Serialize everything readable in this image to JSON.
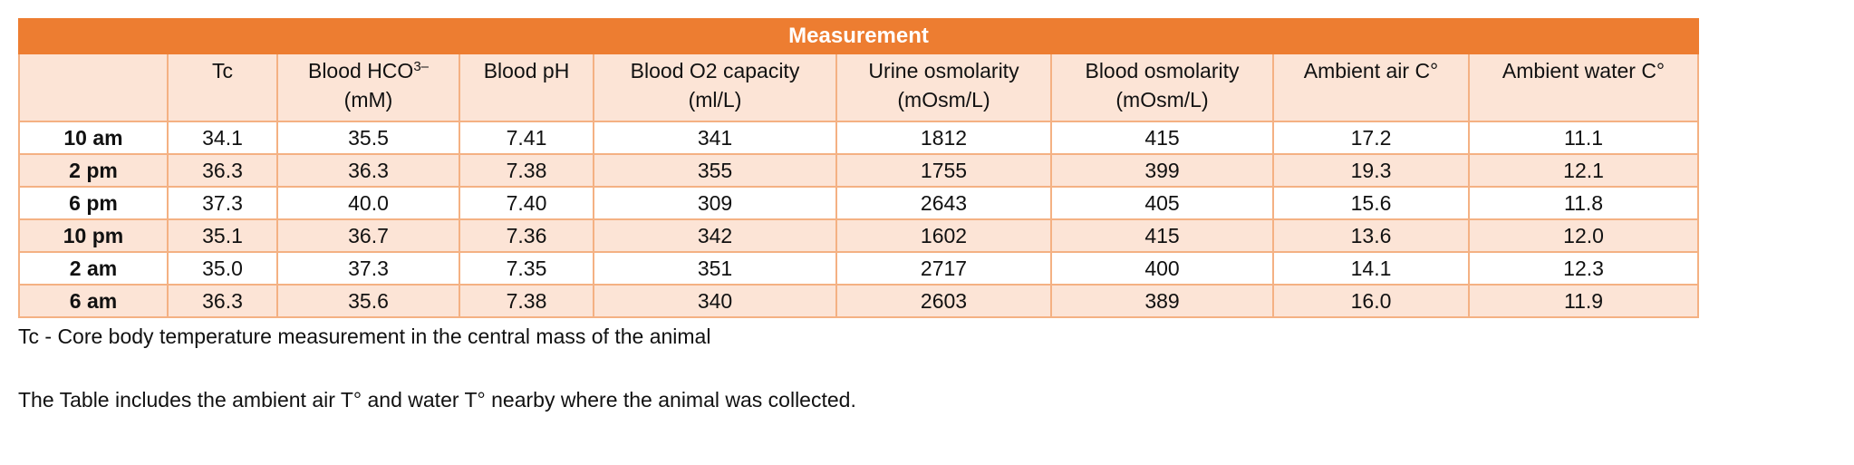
{
  "table": {
    "title": "Measurement",
    "headers": [
      {
        "line1": ""
      },
      {
        "line1": "Tc"
      },
      {
        "line1": "Blood HCO",
        "sup": "3–",
        "line2": "(mM)"
      },
      {
        "line1": "Blood pH"
      },
      {
        "line1": "Blood O2 capacity",
        "line2": "(ml/L)"
      },
      {
        "line1": "Urine osmolarity",
        "line2": "(mOsm/L)"
      },
      {
        "line1": "Blood osmolarity",
        "line2": "(mOsm/L)"
      },
      {
        "line1": "Ambient air C°"
      },
      {
        "line1": "Ambient water C°"
      }
    ],
    "rows": [
      [
        "10 am",
        "34.1",
        "35.5",
        "7.41",
        "341",
        "1812",
        "415",
        "17.2",
        "11.1"
      ],
      [
        "2 pm",
        "36.3",
        "36.3",
        "7.38",
        "355",
        "1755",
        "399",
        "19.3",
        "12.1"
      ],
      [
        "6 pm",
        "37.3",
        "40.0",
        "7.40",
        "309",
        "2643",
        "405",
        "15.6",
        "11.8"
      ],
      [
        "10 pm",
        "35.1",
        "36.7",
        "7.36",
        "342",
        "1602",
        "415",
        "13.6",
        "12.0"
      ],
      [
        "2 am",
        "35.0",
        "37.3",
        "7.35",
        "351",
        "2717",
        "400",
        "14.1",
        "12.3"
      ],
      [
        "6 am",
        "36.3",
        "35.6",
        "7.38",
        "340",
        "2603",
        "389",
        "16.0",
        "11.9"
      ]
    ]
  },
  "notes": [
    "Tc - Core body temperature measurement in the central mass of the animal",
    "The Table includes the ambient air T° and water T° nearby where the animal was collected."
  ]
}
